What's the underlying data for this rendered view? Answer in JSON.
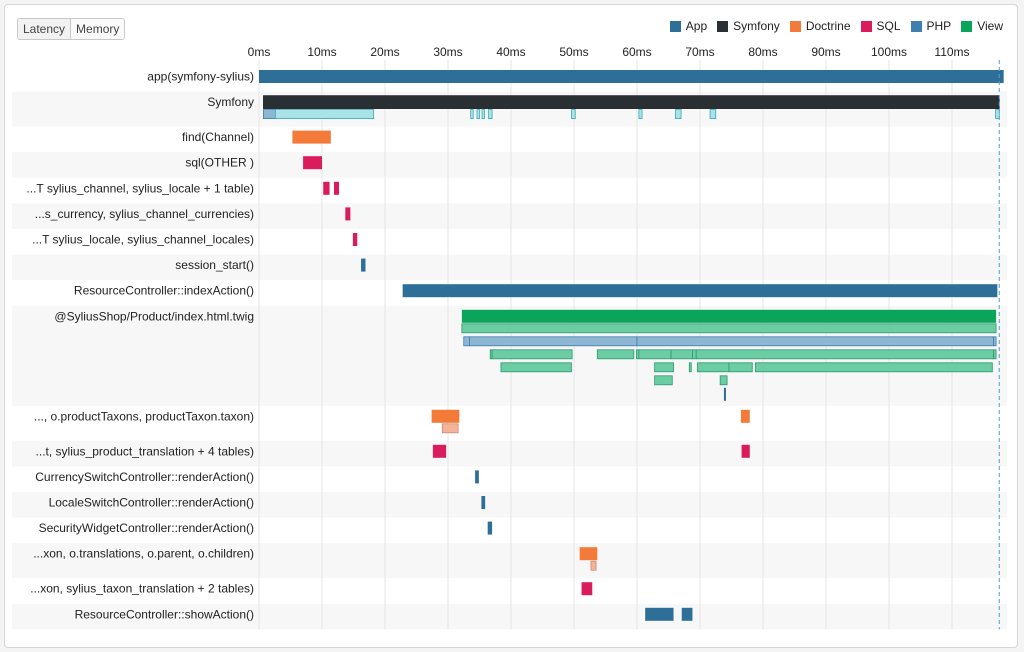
{
  "controls": {
    "latency_label": "Latency",
    "memory_label": "Memory"
  },
  "legend": [
    {
      "label": "App",
      "color": "#2e6f97"
    },
    {
      "label": "Symfony",
      "color": "#2a2f33"
    },
    {
      "label": "Doctrine",
      "color": "#f47a3a"
    },
    {
      "label": "SQL",
      "color": "#d81c5c"
    },
    {
      "label": "PHP",
      "color": "#3d7fae"
    },
    {
      "label": "View",
      "color": "#0aa55a"
    }
  ],
  "chart_data": {
    "type": "timeline",
    "x_unit": "ms",
    "xlim": [
      0,
      118
    ],
    "ticks": [
      "0ms",
      "10ms",
      "20ms",
      "30ms",
      "40ms",
      "50ms",
      "60ms",
      "70ms",
      "80ms",
      "90ms",
      "100ms",
      "110ms"
    ],
    "end_marker_ms": 117.5,
    "rows": [
      {
        "label": "app(symfony-sylius)",
        "lanes": [
          [
            {
              "s": 0,
              "e": 118.2,
              "type": "App"
            }
          ]
        ]
      },
      {
        "label": "Symfony",
        "lanes": [
          [
            {
              "s": 0.7,
              "e": 117.5,
              "type": "Symfony"
            }
          ],
          [
            {
              "s": 0.7,
              "e": 2.6,
              "type": "PHP",
              "light": true
            },
            {
              "s": 2.6,
              "e": 18.2,
              "type": "light-cyan"
            },
            {
              "s": 33.6,
              "e": 34.0,
              "type": "light-cyan"
            },
            {
              "s": 34.6,
              "e": 35.0,
              "type": "light-cyan"
            },
            {
              "s": 35.4,
              "e": 35.8,
              "type": "light-cyan"
            },
            {
              "s": 36.4,
              "e": 37.0,
              "type": "light-cyan"
            },
            {
              "s": 49.6,
              "e": 50.2,
              "type": "light-cyan"
            },
            {
              "s": 60.3,
              "e": 60.8,
              "type": "light-cyan"
            },
            {
              "s": 66.1,
              "e": 67.0,
              "type": "light-cyan"
            },
            {
              "s": 71.6,
              "e": 72.5,
              "type": "light-cyan"
            },
            {
              "s": 116.9,
              "e": 117.5,
              "type": "light-cyan"
            }
          ]
        ]
      },
      {
        "label": "find(Channel)",
        "lanes": [
          [
            {
              "s": 5.3,
              "e": 11.4,
              "type": "Doctrine"
            }
          ]
        ]
      },
      {
        "label": "sql(OTHER )",
        "lanes": [
          [
            {
              "s": 7.0,
              "e": 10.0,
              "type": "SQL"
            }
          ]
        ]
      },
      {
        "label": "...T sylius_channel, sylius_locale + 1 table)",
        "lanes": [
          [
            {
              "s": 10.2,
              "e": 11.2,
              "type": "SQL"
            },
            {
              "s": 11.9,
              "e": 12.7,
              "type": "SQL"
            }
          ]
        ]
      },
      {
        "label": "...s_currency, sylius_channel_currencies)",
        "lanes": [
          [
            {
              "s": 13.7,
              "e": 14.5,
              "type": "SQL"
            }
          ]
        ]
      },
      {
        "label": "...T sylius_locale, sylius_channel_locales)",
        "lanes": [
          [
            {
              "s": 14.9,
              "e": 15.6,
              "type": "SQL"
            }
          ]
        ]
      },
      {
        "label": "session_start()",
        "lanes": [
          [
            {
              "s": 16.2,
              "e": 16.9,
              "type": "App"
            }
          ]
        ]
      },
      {
        "label": "ResourceController::indexAction()",
        "lanes": [
          [
            {
              "s": 22.8,
              "e": 117.2,
              "type": "App"
            }
          ]
        ]
      },
      {
        "label": "@SyliusShop/Product/index.html.twig",
        "lanes": [
          [
            {
              "s": 32.2,
              "e": 117.0,
              "type": "View"
            }
          ],
          [
            {
              "s": 32.2,
              "e": 117.0,
              "type": "View",
              "light": true
            }
          ],
          [
            {
              "s": 32.5,
              "e": 33.4,
              "type": "PHP",
              "light": true
            },
            {
              "s": 33.4,
              "e": 60.0,
              "type": "PHP",
              "light": true
            },
            {
              "s": 60.0,
              "e": 116.6,
              "type": "PHP",
              "light": true
            },
            {
              "s": 116.6,
              "e": 117.0,
              "type": "PHP",
              "light": true
            }
          ],
          [
            {
              "s": 36.7,
              "e": 37.0,
              "type": "View",
              "light": true
            },
            {
              "s": 37.0,
              "e": 49.7,
              "type": "View",
              "light": true
            },
            {
              "s": 53.7,
              "e": 59.5,
              "type": "View",
              "light": true
            },
            {
              "s": 59.9,
              "e": 60.3,
              "type": "View",
              "light": true
            },
            {
              "s": 60.3,
              "e": 65.4,
              "type": "View",
              "light": true
            },
            {
              "s": 65.4,
              "e": 68.8,
              "type": "View",
              "light": true
            },
            {
              "s": 68.8,
              "e": 69.4,
              "type": "View",
              "light": true
            },
            {
              "s": 69.4,
              "e": 116.6,
              "type": "View",
              "light": true
            },
            {
              "s": 116.6,
              "e": 117.0,
              "type": "View",
              "light": true
            }
          ],
          [
            {
              "s": 38.4,
              "e": 49.6,
              "type": "View",
              "light": true
            },
            {
              "s": 62.8,
              "e": 65.8,
              "type": "View",
              "light": true
            },
            {
              "s": 68.3,
              "e": 68.6,
              "type": "View",
              "light": true
            },
            {
              "s": 69.6,
              "e": 74.6,
              "type": "View",
              "light": true
            },
            {
              "s": 74.6,
              "e": 78.3,
              "type": "View",
              "light": true
            },
            {
              "s": 78.8,
              "e": 116.4,
              "type": "View",
              "light": true
            }
          ],
          [
            {
              "s": 62.8,
              "e": 65.6,
              "type": "View",
              "light": true
            },
            {
              "s": 73.2,
              "e": 74.3,
              "type": "View",
              "light": true
            }
          ],
          [
            {
              "s": 73.8,
              "e": 74.1,
              "type": "App"
            }
          ]
        ]
      },
      {
        "label": "..., o.productTaxons, productTaxon.taxon)",
        "lanes": [
          [
            {
              "s": 27.4,
              "e": 31.8,
              "type": "Doctrine"
            },
            {
              "s": 76.5,
              "e": 77.9,
              "type": "Doctrine"
            }
          ],
          [
            {
              "s": 29.1,
              "e": 31.6,
              "type": "Doctrine",
              "light": true
            }
          ]
        ]
      },
      {
        "label": "...t, sylius_product_translation + 4 tables)",
        "lanes": [
          [
            {
              "s": 27.6,
              "e": 29.7,
              "type": "SQL"
            },
            {
              "s": 76.6,
              "e": 77.9,
              "type": "SQL"
            }
          ]
        ]
      },
      {
        "label": "CurrencySwitchController::renderAction()",
        "lanes": [
          [
            {
              "s": 34.3,
              "e": 34.9,
              "type": "App"
            }
          ]
        ]
      },
      {
        "label": "LocaleSwitchController::renderAction()",
        "lanes": [
          [
            {
              "s": 35.3,
              "e": 35.9,
              "type": "App"
            }
          ]
        ]
      },
      {
        "label": "SecurityWidgetController::renderAction()",
        "lanes": [
          [
            {
              "s": 36.3,
              "e": 37.0,
              "type": "App"
            }
          ]
        ]
      },
      {
        "label": "...xon, o.translations, o.parent, o.children)",
        "lanes": [
          [
            {
              "s": 50.9,
              "e": 53.7,
              "type": "Doctrine"
            }
          ],
          [
            {
              "s": 52.7,
              "e": 53.5,
              "type": "Doctrine",
              "light": true
            }
          ]
        ]
      },
      {
        "label": "...xon, sylius_taxon_translation + 2 tables)",
        "lanes": [
          [
            {
              "s": 51.2,
              "e": 52.9,
              "type": "SQL"
            }
          ]
        ]
      },
      {
        "label": "ResourceController::showAction()",
        "lanes": [
          [
            {
              "s": 61.3,
              "e": 65.8,
              "type": "App"
            },
            {
              "s": 67.1,
              "e": 68.8,
              "type": "App"
            }
          ]
        ]
      }
    ]
  }
}
